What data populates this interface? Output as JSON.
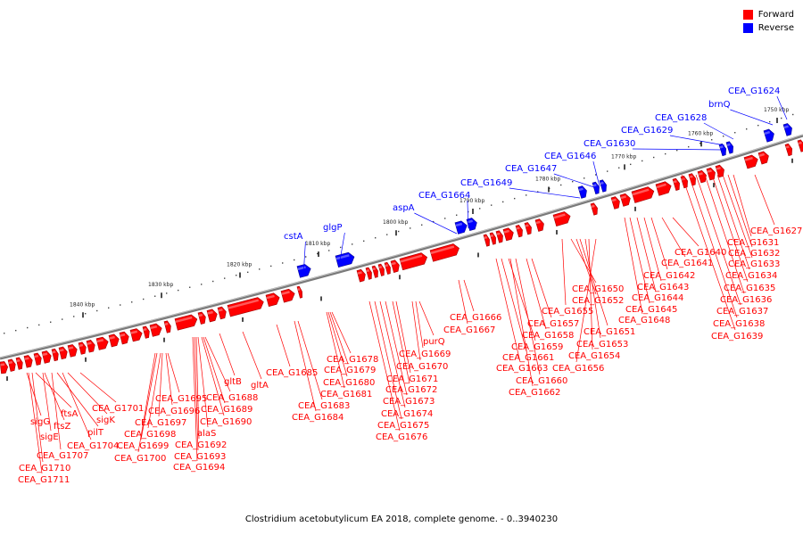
{
  "caption": "Clostridium acetobutylicum EA 2018, complete genome. - 0..3940230",
  "legend": [
    {
      "label": "Forward",
      "color": "#ff0000"
    },
    {
      "label": "Reverse",
      "color": "#0000ff"
    }
  ],
  "colors": {
    "forward": "#ff0000",
    "reverse": "#0000ff",
    "backbone": "#888888"
  },
  "ticks": [
    "1840 kbp",
    "1830 kbp",
    "1820 kbp",
    "1810 kbp",
    "1800 kbp",
    "1790 kbp",
    "1780 kbp",
    "1770 kbp",
    "1760 kbp",
    "1750 kbp"
  ],
  "reverse_labels": [
    "cstA",
    "glgP",
    "aspA",
    "CEA_G1664",
    "CEA_G1649",
    "CEA_G1647",
    "CEA_G1646",
    "CEA_G1630",
    "CEA_G1629",
    "CEA_G1628",
    "brnQ",
    "CEA_G1624"
  ],
  "forward_labels": [
    "sigG",
    "ftsA",
    "sigE",
    "ftsZ",
    "pilT",
    "sigK",
    "CEA_G1701",
    "CEA_G1707",
    "CEA_G1704",
    "CEA_G1710",
    "CEA_G1711",
    "CEA_G1695",
    "CEA_G1696",
    "CEA_G1697",
    "CEA_G1698",
    "CEA_G1699",
    "CEA_G1700",
    "CEA_G1688",
    "CEA_G1689",
    "CEA_G1690",
    "alaS",
    "CEA_G1692",
    "CEA_G1693",
    "CEA_G1694",
    "gltB",
    "gltA",
    "CEA_G1685",
    "CEA_G1683",
    "CEA_G1684",
    "CEA_G1678",
    "CEA_G1679",
    "CEA_G1680",
    "CEA_G1681",
    "purQ",
    "CEA_G1669",
    "CEA_G1670",
    "CEA_G1671",
    "CEA_G1672",
    "CEA_G1673",
    "CEA_G1674",
    "CEA_G1675",
    "CEA_G1676",
    "CEA_G1666",
    "CEA_G1667",
    "CEA_G1657",
    "CEA_G1658",
    "CEA_G1659",
    "CEA_G1661",
    "CEA_G1663",
    "CEA_G1660",
    "CEA_G1662",
    "CEA_G1650",
    "CEA_G1652",
    "CEA_G1655",
    "CEA_G1651",
    "CEA_G1653",
    "CEA_G1654",
    "CEA_G1656",
    "CEA_G1648",
    "CEA_G1645",
    "CEA_G1644",
    "CEA_G1643",
    "CEA_G1642",
    "CEA_G1641",
    "CEA_G1640",
    "CEA_G1627",
    "CEA_G1631",
    "CEA_G1632",
    "CEA_G1633",
    "CEA_G1634",
    "CEA_G1635",
    "CEA_G1636",
    "CEA_G1637",
    "CEA_G1638",
    "CEA_G1639"
  ]
}
